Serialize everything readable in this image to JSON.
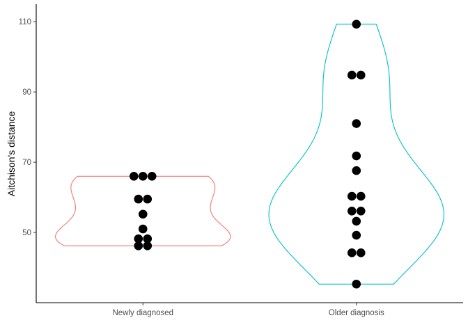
{
  "chart_data": {
    "type": "violin",
    "title": "",
    "xlabel": "",
    "ylabel": "Aitchison's distance",
    "ylim": [
      30,
      115
    ],
    "yticks": [
      50,
      70,
      90,
      110
    ],
    "grid": false,
    "legend": "none",
    "categories": [
      "Newly diagnosed",
      "Older diagnosis"
    ],
    "series": [
      {
        "category": "Newly diagnosed",
        "color": "#F8766D",
        "points": [
          46.2,
          46.2,
          48.2,
          48.2,
          51.0,
          55.2,
          59.5,
          59.5,
          66.0,
          66.0,
          66.0
        ]
      },
      {
        "category": "Older diagnosis",
        "color": "#00BFC4",
        "points": [
          35.3,
          44.2,
          44.2,
          49.2,
          53.2,
          56.1,
          56.1,
          60.3,
          60.3,
          67.6,
          71.8,
          81.0,
          94.8,
          94.8,
          109.3
        ]
      }
    ]
  }
}
